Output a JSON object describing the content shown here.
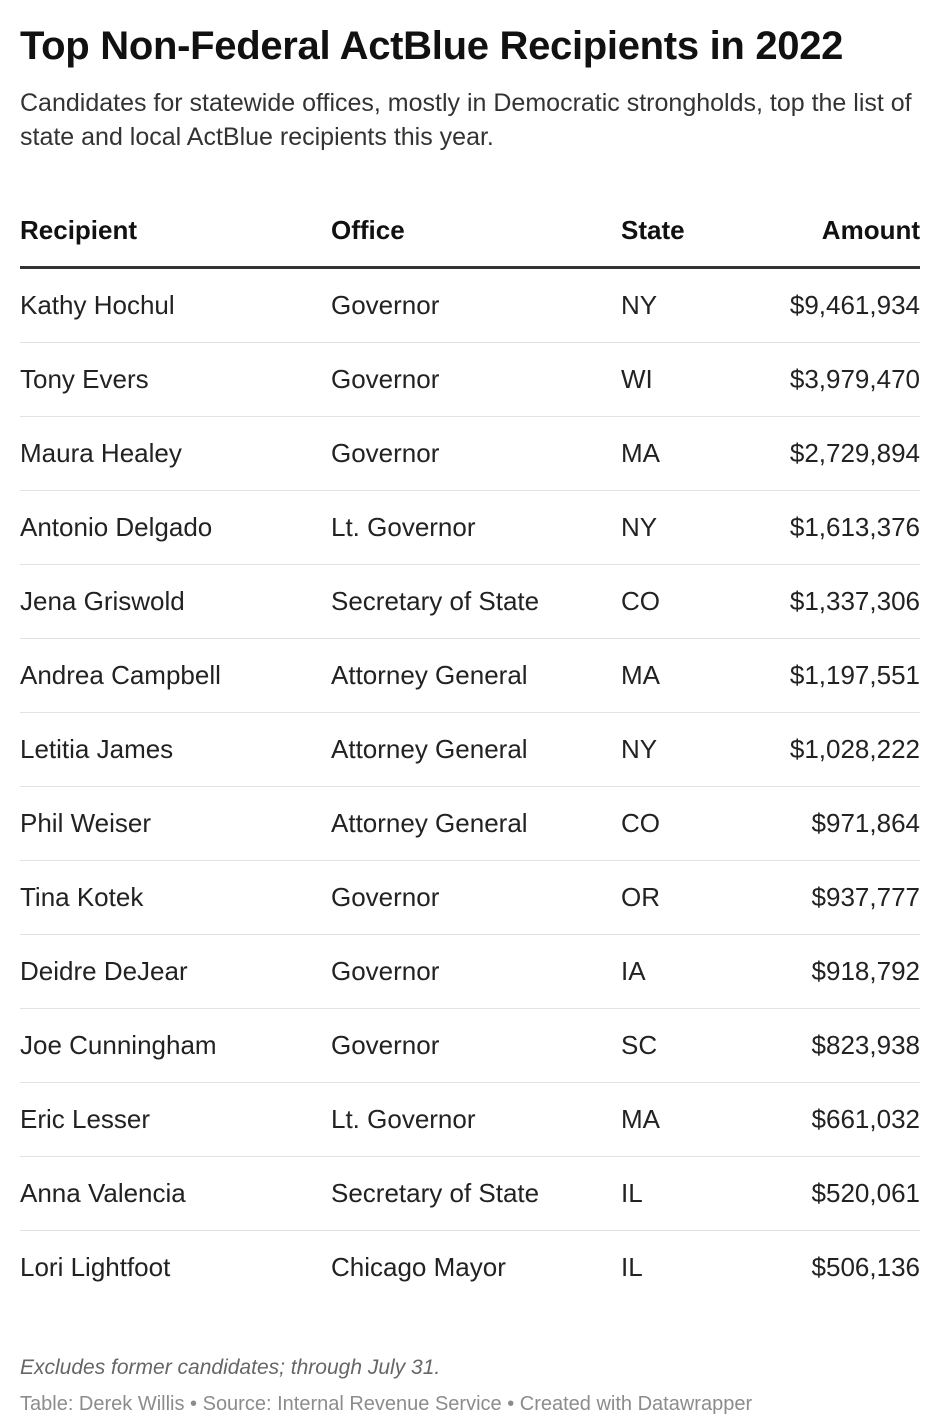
{
  "header": {
    "title": "Top Non-Federal ActBlue Recipients in 2022",
    "subtitle": "Candidates for statewide offices, mostly in Democratic strongholds, top the list of state and local ActBlue recipients this year."
  },
  "chart_data": {
    "type": "table",
    "columns": [
      "Recipient",
      "Office",
      "State",
      "Amount"
    ],
    "rows": [
      [
        "Kathy Hochul",
        "Governor",
        "NY",
        "$9,461,934"
      ],
      [
        "Tony Evers",
        "Governor",
        "WI",
        "$3,979,470"
      ],
      [
        "Maura Healey",
        "Governor",
        "MA",
        "$2,729,894"
      ],
      [
        "Antonio Delgado",
        "Lt. Governor",
        "NY",
        "$1,613,376"
      ],
      [
        "Jena Griswold",
        "Secretary of State",
        "CO",
        "$1,337,306"
      ],
      [
        "Andrea Campbell",
        "Attorney General",
        "MA",
        "$1,197,551"
      ],
      [
        "Letitia James",
        "Attorney General",
        "NY",
        "$1,028,222"
      ],
      [
        "Phil Weiser",
        "Attorney General",
        "CO",
        "$971,864"
      ],
      [
        "Tina Kotek",
        "Governor",
        "OR",
        "$937,777"
      ],
      [
        "Deidre DeJear",
        "Governor",
        "IA",
        "$918,792"
      ],
      [
        "Joe Cunningham",
        "Governor",
        "SC",
        "$823,938"
      ],
      [
        "Eric Lesser",
        "Lt. Governor",
        "MA",
        "$661,032"
      ],
      [
        "Anna Valencia",
        "Secretary of State",
        "IL",
        "$520,061"
      ],
      [
        "Lori Lightfoot",
        "Chicago Mayor",
        "IL",
        "$506,136"
      ]
    ]
  },
  "footer": {
    "notes": "Excludes former candidates; through July 31.",
    "byline": "Table: Derek Willis • Source: Internal Revenue Service • Created with Datawrapper"
  },
  "colors": {
    "text": "#1d1d1d",
    "header_rule": "#333333",
    "row_rule": "#e3e3e3",
    "notes": "#666666",
    "byline": "#8c8c8c"
  }
}
